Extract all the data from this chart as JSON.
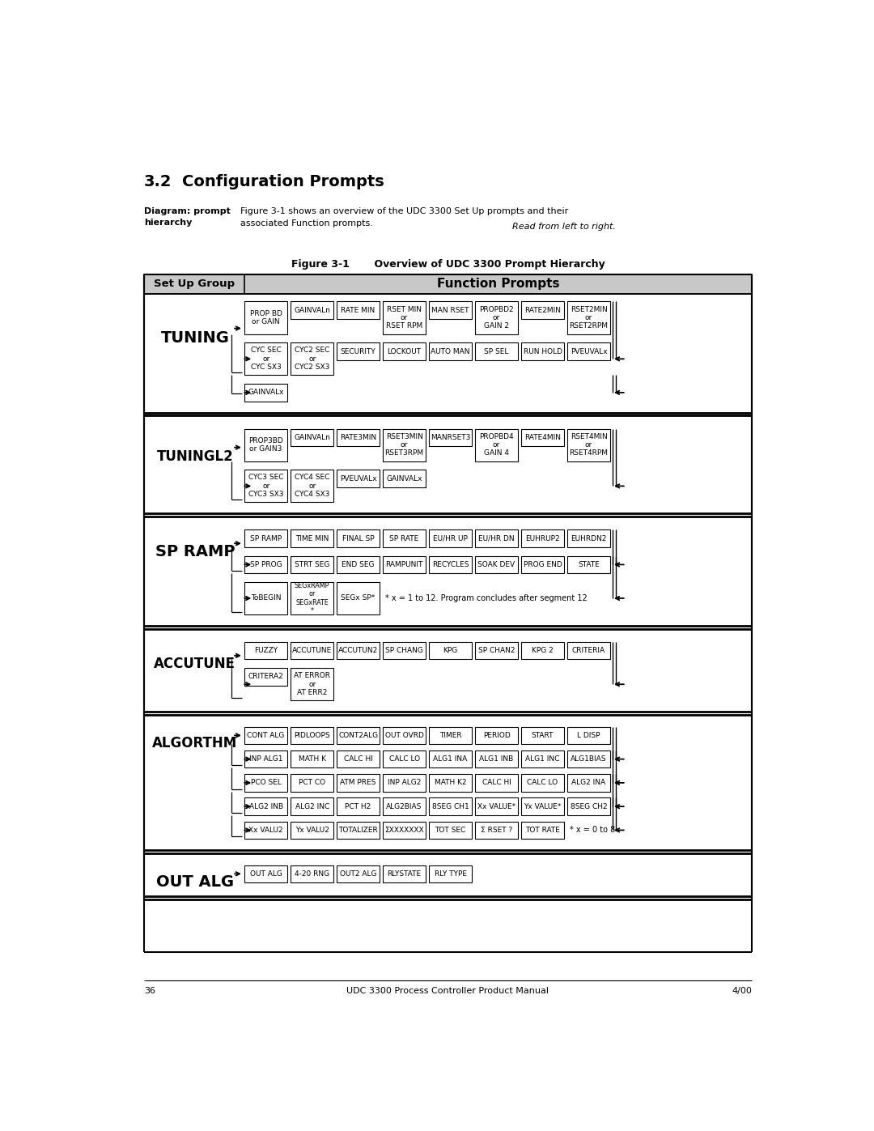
{
  "title": "3.2",
  "title2": "Configuration Prompts",
  "diag_label": "Diagram: prompt\nhierarchy",
  "diag_text1": "Figure 3-1 shows an overview of the UDC 3300 Set Up prompts and their\nassociated Function prompts. ",
  "diag_italic": "Read from left to right.",
  "fig_caption": "Figure 3-1       Overview of UDC 3300 Prompt Hierarchy",
  "hdr_left": "Set Up Group",
  "hdr_right": "Function Prompts",
  "footer_l": "36",
  "footer_c": "UDC 3300 Process Controller Product Manual",
  "footer_r": "4/00",
  "bg": "#ffffff"
}
